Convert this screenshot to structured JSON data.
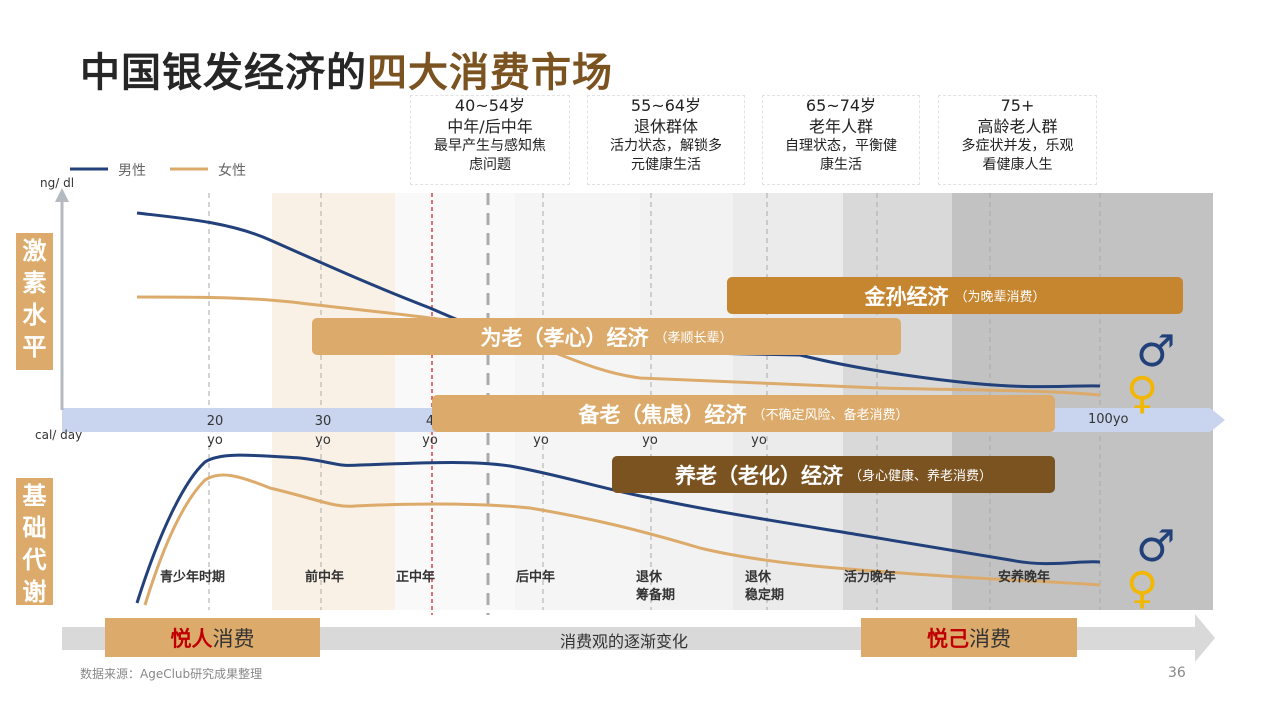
{
  "title": {
    "part1": "中国银发经济的",
    "part2": "四大消费市场"
  },
  "legend": {
    "male": "男性",
    "female": "女性",
    "male_color": "#22407a",
    "female_color": "#dcab6b"
  },
  "axis": {
    "y_unit": "ng/ dl",
    "x_unit": "cal/ day",
    "ticks": [
      {
        "num": "20",
        "unit": "yo"
      },
      {
        "num": "30",
        "unit": "yo"
      },
      {
        "num": "4",
        "unit": "yo"
      },
      {
        "num": "",
        "unit": "yo"
      },
      {
        "num": "",
        "unit": "yo"
      },
      {
        "num": "",
        "unit": "yo"
      }
    ],
    "end_tick": "100yo"
  },
  "age_groups": [
    {
      "range": "40~54岁",
      "name": "中年/后中年",
      "desc1": "最早产生与感知焦",
      "desc2": "虑问题"
    },
    {
      "range": "55~64岁",
      "name": "退休群体",
      "desc1": "活力状态，解锁多",
      "desc2": "元健康生活"
    },
    {
      "range": "65~74岁",
      "name": "老年人群",
      "desc1": "自理状态，平衡健",
      "desc2": "康生活"
    },
    {
      "range": "75+",
      "name": "高龄老人群",
      "desc1": "多症状并发，乐观",
      "desc2": "看健康人生"
    }
  ],
  "side_labels": {
    "hormone": "激素水平",
    "metabolism": "基础代谢"
  },
  "markets": [
    {
      "name": "金孙经济",
      "note": "（为晚辈消费）",
      "color": "#c6852f"
    },
    {
      "name": "为老（孝心）经济",
      "note": "（孝顺长辈）",
      "color": "#dcab6b"
    },
    {
      "name": "备老（焦虑）经济",
      "note": "（不确定风险、备老消费）",
      "color": "#dcab6b"
    },
    {
      "name": "养老（老化）经济",
      "note": "（身心健康、养老消费）",
      "color": "#7a5321"
    }
  ],
  "stages": [
    {
      "l1": "青少年时期"
    },
    {
      "l1": "前中年"
    },
    {
      "l1": "正中年"
    },
    {
      "l1": "后中年"
    },
    {
      "l1": "退休",
      "l2": "筹备期"
    },
    {
      "l1": "退休",
      "l2": "稳定期"
    },
    {
      "l1": "活力晚年"
    },
    {
      "l1": "安养晚年"
    }
  ],
  "consumption": {
    "left_hl": "悦人",
    "left_rest": "消费",
    "middle": "消费观的逐渐变化",
    "right_hl": "悦己",
    "right_rest": "消费"
  },
  "gender_icons": [
    "male-symbol-icon",
    "female-symbol-icon"
  ],
  "source": "数据来源：AgeClub研究成果整理",
  "page_number": "36"
}
